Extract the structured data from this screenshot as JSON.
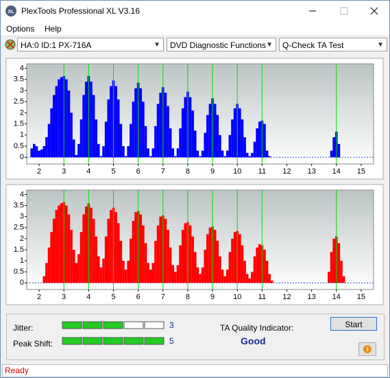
{
  "window": {
    "title": "PlexTools Professional XL V3.16",
    "menu": [
      "Options",
      "Help"
    ],
    "dropdowns": [
      "HA:0 ID:1  PX-716A",
      "DVD Diagnostic Functions",
      "Q-Check TA Test"
    ],
    "status": "Ready"
  },
  "chart_data": [
    {
      "type": "bar",
      "color": "#0000ff",
      "marker_color": "#00dd00",
      "x": [
        1.6,
        1.7,
        1.8,
        1.9,
        2.0,
        2.1,
        2.2,
        2.3,
        2.4,
        2.5,
        2.6,
        2.7,
        2.8,
        2.9,
        3.0,
        3.1,
        3.2,
        3.3,
        3.4,
        3.5,
        3.6,
        3.7,
        3.8,
        3.9,
        4.0,
        4.1,
        4.2,
        4.3,
        4.4,
        4.5,
        4.6,
        4.7,
        4.8,
        4.9,
        5.0,
        5.1,
        5.2,
        5.3,
        5.4,
        5.5,
        5.6,
        5.7,
        5.8,
        5.9,
        6.0,
        6.1,
        6.2,
        6.3,
        6.4,
        6.5,
        6.6,
        6.7,
        6.8,
        6.9,
        7.0,
        7.1,
        7.2,
        7.3,
        7.4,
        7.5,
        7.6,
        7.7,
        7.8,
        7.9,
        8.0,
        8.1,
        8.2,
        8.3,
        8.4,
        8.5,
        8.6,
        8.7,
        8.8,
        8.9,
        9.0,
        9.1,
        9.2,
        9.3,
        9.4,
        9.5,
        9.6,
        9.7,
        9.8,
        9.9,
        10.0,
        10.1,
        10.2,
        10.3,
        10.4,
        10.5,
        10.6,
        10.7,
        10.8,
        10.9,
        11.0,
        11.1,
        11.2,
        11.3,
        11.4,
        11.5,
        11.6,
        11.7,
        11.8,
        11.9,
        12.0,
        12.1,
        12.2,
        12.3,
        12.4,
        12.5,
        12.6,
        12.7,
        12.8,
        12.9,
        13.0,
        13.1,
        13.2,
        13.3,
        13.4,
        13.5,
        13.6,
        13.7,
        13.8,
        13.9,
        14.0,
        14.1,
        14.2,
        14.3,
        14.4,
        14.5,
        14.6
      ],
      "values": [
        0,
        0.4,
        0.6,
        0.5,
        0.3,
        0.35,
        0.5,
        0.9,
        1.5,
        2.2,
        2.8,
        3.2,
        3.5,
        3.6,
        3.65,
        3.5,
        3.0,
        2.0,
        0.8,
        0.1,
        0.6,
        1.7,
        2.8,
        3.4,
        3.65,
        3.4,
        2.8,
        1.7,
        0.6,
        0.05,
        0.5,
        1.6,
        2.6,
        3.2,
        3.45,
        3.2,
        2.6,
        1.5,
        0.5,
        0.05,
        0.5,
        1.5,
        2.5,
        3.1,
        3.35,
        3.1,
        2.5,
        1.4,
        0.4,
        0.05,
        0.4,
        1.4,
        2.4,
        2.9,
        3.15,
        2.9,
        2.3,
        1.3,
        0.4,
        0.05,
        0.4,
        1.3,
        2.2,
        2.7,
        2.95,
        2.7,
        2.1,
        1.2,
        0.3,
        0.05,
        0.3,
        1.1,
        1.9,
        2.4,
        2.65,
        2.4,
        1.9,
        1.0,
        0.3,
        0.05,
        0.3,
        1.0,
        1.7,
        2.2,
        2.4,
        2.2,
        1.7,
        0.9,
        0.2,
        0.05,
        0.2,
        0.7,
        1.3,
        1.6,
        1.65,
        1.5,
        0.3,
        0.05,
        0,
        0,
        0,
        0,
        0,
        0,
        0,
        0,
        0,
        0,
        0,
        0,
        0,
        0,
        0,
        0,
        0,
        0,
        0,
        0,
        0,
        0,
        0,
        0,
        0.3,
        0.9,
        1.15,
        0.6,
        0,
        0,
        0,
        0,
        0
      ],
      "markers": [
        3,
        4,
        5,
        6,
        7,
        8,
        9,
        10,
        11,
        14
      ],
      "xlim": [
        1.5,
        15.5
      ],
      "xticks": [
        2,
        3,
        4,
        5,
        6,
        7,
        8,
        9,
        10,
        11,
        12,
        13,
        14,
        15
      ],
      "ylim": [
        -0.3,
        4.2
      ],
      "yticks": [
        0,
        0.5,
        1,
        1.5,
        2,
        2.5,
        3,
        3.5,
        4
      ]
    },
    {
      "type": "bar",
      "color": "#ff0000",
      "marker_color": "#00dd00",
      "x": [
        1.6,
        1.7,
        1.8,
        1.9,
        2.0,
        2.1,
        2.2,
        2.3,
        2.4,
        2.5,
        2.6,
        2.7,
        2.8,
        2.9,
        3.0,
        3.1,
        3.2,
        3.3,
        3.4,
        3.5,
        3.6,
        3.7,
        3.8,
        3.9,
        4.0,
        4.1,
        4.2,
        4.3,
        4.4,
        4.5,
        4.6,
        4.7,
        4.8,
        4.9,
        5.0,
        5.1,
        5.2,
        5.3,
        5.4,
        5.5,
        5.6,
        5.7,
        5.8,
        5.9,
        6.0,
        6.1,
        6.2,
        6.3,
        6.4,
        6.5,
        6.6,
        6.7,
        6.8,
        6.9,
        7.0,
        7.1,
        7.2,
        7.3,
        7.4,
        7.5,
        7.6,
        7.7,
        7.8,
        7.9,
        8.0,
        8.1,
        8.2,
        8.3,
        8.4,
        8.5,
        8.6,
        8.7,
        8.8,
        8.9,
        9.0,
        9.1,
        9.2,
        9.3,
        9.4,
        9.5,
        9.6,
        9.7,
        9.8,
        9.9,
        10.0,
        10.1,
        10.2,
        10.3,
        10.4,
        10.5,
        10.6,
        10.7,
        10.8,
        10.9,
        11.0,
        11.1,
        11.2,
        11.3,
        11.4,
        11.5,
        11.6,
        11.7,
        11.8,
        11.9,
        12.0,
        12.1,
        12.2,
        12.3,
        12.4,
        12.5,
        12.6,
        12.7,
        12.8,
        12.9,
        13.0,
        13.1,
        13.2,
        13.3,
        13.4,
        13.5,
        13.6,
        13.7,
        13.8,
        13.9,
        14.0,
        14.1,
        14.2,
        14.3,
        14.4,
        14.5,
        14.6
      ],
      "values": [
        0,
        0,
        0,
        0,
        0,
        0,
        0.3,
        0.9,
        1.6,
        2.3,
        2.9,
        3.3,
        3.5,
        3.6,
        3.65,
        3.5,
        3.1,
        2.4,
        1.5,
        0.9,
        1.3,
        2.3,
        3.1,
        3.45,
        3.6,
        3.4,
        2.9,
        2.1,
        1.2,
        0.7,
        1.1,
        2.1,
        2.9,
        3.3,
        3.4,
        3.2,
        2.7,
        1.9,
        1.0,
        0.6,
        1.0,
        2.0,
        2.8,
        3.2,
        3.25,
        3.1,
        2.6,
        1.8,
        0.9,
        0.6,
        0.9,
        1.9,
        2.6,
        3.0,
        3.05,
        2.9,
        2.4,
        1.6,
        0.8,
        0.5,
        0.8,
        1.7,
        2.4,
        2.7,
        2.75,
        2.6,
        2.1,
        1.4,
        0.7,
        0.4,
        0.7,
        1.5,
        2.2,
        2.5,
        2.55,
        2.4,
        1.9,
        1.2,
        0.6,
        0.3,
        0.6,
        1.4,
        2.0,
        2.3,
        2.35,
        2.2,
        1.7,
        1.0,
        0.4,
        0.2,
        0.5,
        1.2,
        1.6,
        1.75,
        1.7,
        1.5,
        1.0,
        0.4,
        0.1,
        0,
        0,
        0,
        0,
        0,
        0,
        0,
        0,
        0,
        0,
        0,
        0,
        0,
        0,
        0,
        0,
        0,
        0,
        0,
        0,
        0,
        0,
        0.5,
        1.4,
        2.0,
        2.1,
        1.8,
        1.0,
        0.3,
        0,
        0,
        0
      ],
      "markers": [
        3,
        4,
        5,
        6,
        7,
        8,
        9,
        10,
        11,
        14
      ],
      "xlim": [
        1.5,
        15.5
      ],
      "xticks": [
        2,
        3,
        4,
        5,
        6,
        7,
        8,
        9,
        10,
        11,
        12,
        13,
        14,
        15
      ],
      "ylim": [
        -0.3,
        4.2
      ],
      "yticks": [
        0,
        0.5,
        1,
        1.5,
        2,
        2.5,
        3,
        3.5,
        4
      ]
    }
  ],
  "results": {
    "jitter_label": "Jitter:",
    "jitter": 3,
    "peak_shift_label": "Peak Shift:",
    "peak_shift": 5,
    "quality_label": "TA Quality Indicator:",
    "quality": "Good",
    "button": "Start"
  }
}
